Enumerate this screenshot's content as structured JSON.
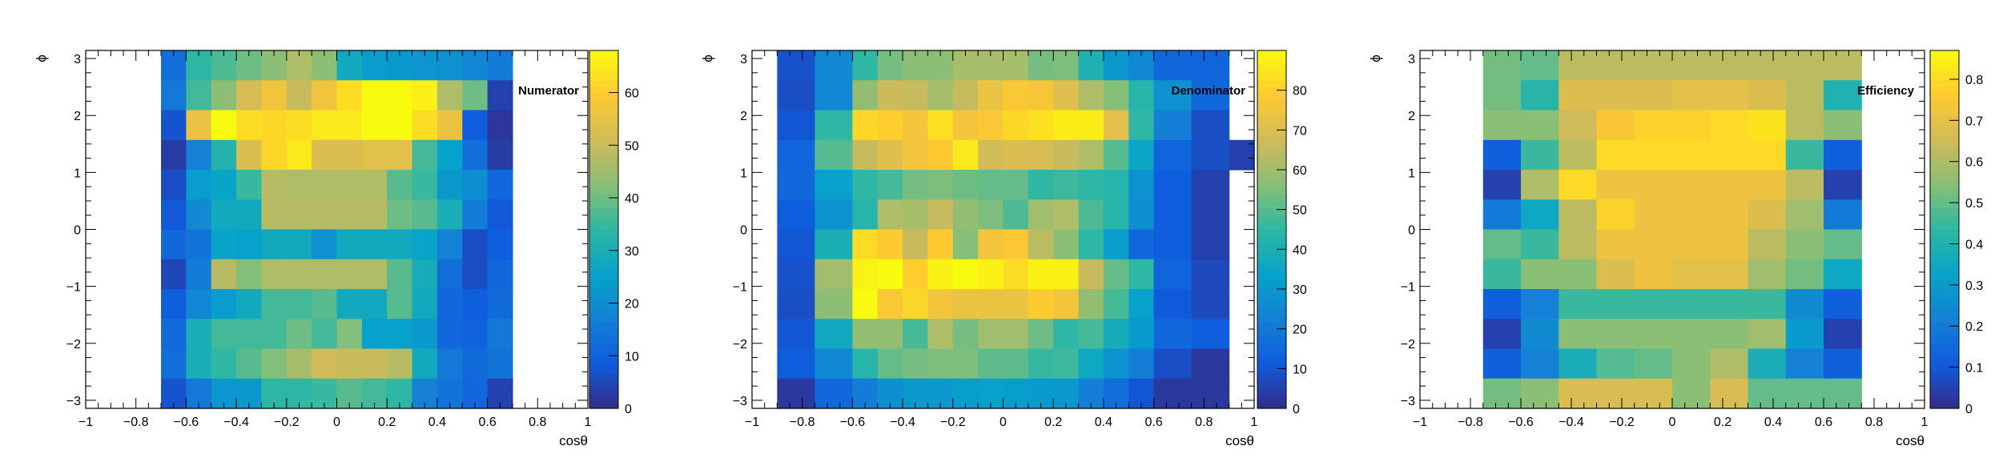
{
  "chart_data": [
    {
      "type": "heatmap",
      "title": "Numerator",
      "xlabel": "cosθ",
      "ylabel": "ϕ",
      "xlim": [
        -1,
        1
      ],
      "ylim": [
        -3.14159,
        3.14159
      ],
      "x_ticks": [
        "−1",
        "−0.8",
        "−0.6",
        "−0.4",
        "−0.2",
        "0",
        "0.2",
        "0.4",
        "0.6",
        "0.8",
        "1"
      ],
      "y_ticks": [
        "−3",
        "−2",
        "−1",
        "0",
        "1",
        "2",
        "3"
      ],
      "z_range": [
        0,
        68
      ],
      "colorbar_ticks": [
        "0",
        "10",
        "20",
        "30",
        "40",
        "50",
        "60"
      ],
      "x_edges": [
        -0.7,
        -0.6,
        -0.5,
        -0.4,
        -0.3,
        -0.2,
        -0.1,
        0.0,
        0.1,
        0.2,
        0.3,
        0.4,
        0.5,
        0.6,
        0.7
      ],
      "z": [
        [
          13,
          34,
          37,
          40,
          43,
          47,
          43,
          28,
          24,
          23,
          22,
          21,
          18,
          16
        ],
        [
          15,
          36,
          43,
          52,
          57,
          50,
          57,
          63,
          68,
          68,
          66,
          47,
          40,
          4
        ],
        [
          7,
          56,
          68,
          63,
          62,
          63,
          65,
          65,
          68,
          68,
          63,
          56,
          9,
          2
        ],
        [
          3,
          17,
          32,
          53,
          62,
          65,
          53,
          53,
          54,
          54,
          36,
          25,
          13,
          3
        ],
        [
          6,
          24,
          26,
          35,
          48,
          47,
          47,
          47,
          47,
          38,
          35,
          23,
          20,
          11
        ],
        [
          8,
          19,
          28,
          28,
          48,
          48,
          48,
          48,
          48,
          40,
          38,
          30,
          16,
          8
        ],
        [
          11,
          14,
          26,
          25,
          28,
          28,
          21,
          28,
          28,
          28,
          26,
          17,
          6,
          9
        ],
        [
          5,
          16,
          48,
          42,
          47,
          47,
          47,
          47,
          47,
          38,
          29,
          13,
          6,
          11
        ],
        [
          9,
          18,
          24,
          28,
          36,
          36,
          38,
          28,
          28,
          38,
          28,
          11,
          9,
          12
        ],
        [
          12,
          30,
          36,
          36,
          36,
          40,
          36,
          42,
          25,
          25,
          23,
          11,
          10,
          15
        ],
        [
          13,
          30,
          34,
          38,
          42,
          46,
          51,
          50,
          50,
          48,
          28,
          15,
          12,
          14
        ],
        [
          7,
          15,
          22,
          23,
          34,
          34,
          35,
          38,
          36,
          34,
          17,
          14,
          11,
          4
        ]
      ]
    },
    {
      "type": "heatmap",
      "title": "Denominator",
      "xlabel": "cosθ",
      "ylabel": "ϕ",
      "xlim": [
        -1,
        1
      ],
      "ylim": [
        -3.14159,
        3.14159
      ],
      "x_ticks": [
        "−1",
        "−0.8",
        "−0.6",
        "−0.4",
        "−0.2",
        "0",
        "0.2",
        "0.4",
        "0.6",
        "0.8",
        "1"
      ],
      "y_ticks": [
        "−3",
        "−2",
        "−1",
        "0",
        "1",
        "2",
        "3"
      ],
      "z_range": [
        0,
        90
      ],
      "colorbar_ticks": [
        "0",
        "10",
        "20",
        "30",
        "40",
        "50",
        "60",
        "70",
        "80"
      ],
      "x_edges": [
        -0.9,
        -0.75,
        -0.6,
        -0.5,
        -0.4,
        -0.3,
        -0.2,
        -0.1,
        0.0,
        0.1,
        0.2,
        0.3,
        0.4,
        0.5,
        0.6,
        0.75,
        0.9,
        1.0
      ],
      "z": [
        [
          9,
          25,
          45,
          54,
          57,
          57,
          61,
          61,
          61,
          54,
          55,
          41,
          30,
          25,
          15,
          14,
          0
        ],
        [
          8,
          25,
          58,
          67,
          66,
          61,
          66,
          74,
          78,
          77,
          71,
          62,
          56,
          43,
          28,
          15,
          0
        ],
        [
          10,
          45,
          82,
          80,
          76,
          84,
          76,
          78,
          82,
          84,
          87,
          87,
          72,
          45,
          22,
          8,
          0
        ],
        [
          14,
          50,
          66,
          71,
          76,
          79,
          86,
          68,
          70,
          69,
          66,
          62,
          50,
          35,
          14,
          8,
          5
        ],
        [
          15,
          33,
          45,
          48,
          54,
          55,
          53,
          52,
          52,
          45,
          47,
          45,
          43,
          28,
          12,
          5,
          0
        ],
        [
          12,
          28,
          43,
          62,
          61,
          66,
          58,
          55,
          49,
          60,
          62,
          49,
          43,
          27,
          12,
          5,
          0
        ],
        [
          10,
          40,
          83,
          79,
          66,
          79,
          56,
          76,
          78,
          64,
          57,
          45,
          32,
          15,
          12,
          5,
          0
        ],
        [
          9,
          60,
          88,
          90,
          80,
          88,
          90,
          88,
          83,
          88,
          88,
          66,
          52,
          45,
          14,
          7,
          0
        ],
        [
          8,
          57,
          90,
          78,
          82,
          76,
          74,
          74,
          74,
          79,
          76,
          58,
          48,
          33,
          11,
          7,
          0
        ],
        [
          10,
          37,
          58,
          58,
          48,
          62,
          54,
          60,
          60,
          53,
          45,
          48,
          38,
          31,
          15,
          12,
          0
        ],
        [
          12,
          25,
          43,
          52,
          54,
          55,
          55,
          51,
          51,
          46,
          47,
          36,
          28,
          22,
          8,
          3,
          0
        ],
        [
          3,
          15,
          21,
          27,
          30,
          30,
          32,
          33,
          32,
          31,
          30,
          22,
          17,
          10,
          3,
          3,
          0
        ]
      ]
    },
    {
      "type": "heatmap",
      "title": "Efficiency",
      "xlabel": "cosθ",
      "ylabel": "ϕ",
      "xlim": [
        -1,
        1
      ],
      "ylim": [
        -3.14159,
        3.14159
      ],
      "x_ticks": [
        "−1",
        "−0.8",
        "−0.6",
        "−0.4",
        "−0.2",
        "0",
        "0.2",
        "0.4",
        "0.6",
        "0.8",
        "1"
      ],
      "y_ticks": [
        "−3",
        "−2",
        "−1",
        "0",
        "1",
        "2",
        "3"
      ],
      "z_range": [
        0,
        0.87
      ],
      "colorbar_ticks": [
        "0",
        "0.1",
        "0.2",
        "0.3",
        "0.4",
        "0.5",
        "0.6",
        "0.7",
        "0.8"
      ],
      "x_edges": [
        -0.75,
        -0.6,
        -0.45,
        -0.3,
        -0.15,
        0.0,
        0.15,
        0.3,
        0.45,
        0.6,
        0.75
      ],
      "z": [
        [
          0.52,
          0.5,
          0.62,
          0.62,
          0.62,
          0.62,
          0.62,
          0.62,
          0.62,
          0.62
        ],
        [
          0.52,
          0.42,
          0.68,
          0.68,
          0.68,
          0.7,
          0.7,
          0.68,
          0.62,
          0.4
        ],
        [
          0.55,
          0.55,
          0.65,
          0.75,
          0.78,
          0.78,
          0.8,
          0.82,
          0.62,
          0.55
        ],
        [
          0.12,
          0.45,
          0.62,
          0.8,
          0.8,
          0.8,
          0.8,
          0.8,
          0.45,
          0.12
        ],
        [
          0.05,
          0.6,
          0.8,
          0.72,
          0.72,
          0.72,
          0.72,
          0.72,
          0.62,
          0.05
        ],
        [
          0.2,
          0.35,
          0.62,
          0.78,
          0.72,
          0.72,
          0.72,
          0.68,
          0.58,
          0.2
        ],
        [
          0.5,
          0.45,
          0.62,
          0.72,
          0.72,
          0.72,
          0.72,
          0.62,
          0.55,
          0.5
        ],
        [
          0.45,
          0.55,
          0.55,
          0.68,
          0.72,
          0.7,
          0.7,
          0.58,
          0.52,
          0.35
        ],
        [
          0.12,
          0.22,
          0.45,
          0.45,
          0.45,
          0.45,
          0.45,
          0.45,
          0.25,
          0.12
        ],
        [
          0.05,
          0.25,
          0.55,
          0.55,
          0.55,
          0.55,
          0.55,
          0.58,
          0.3,
          0.05
        ],
        [
          0.12,
          0.22,
          0.38,
          0.48,
          0.5,
          0.55,
          0.6,
          0.38,
          0.22,
          0.12
        ],
        [
          0.52,
          0.55,
          0.67,
          0.67,
          0.67,
          0.55,
          0.67,
          0.5,
          0.5,
          0.5
        ]
      ]
    }
  ]
}
